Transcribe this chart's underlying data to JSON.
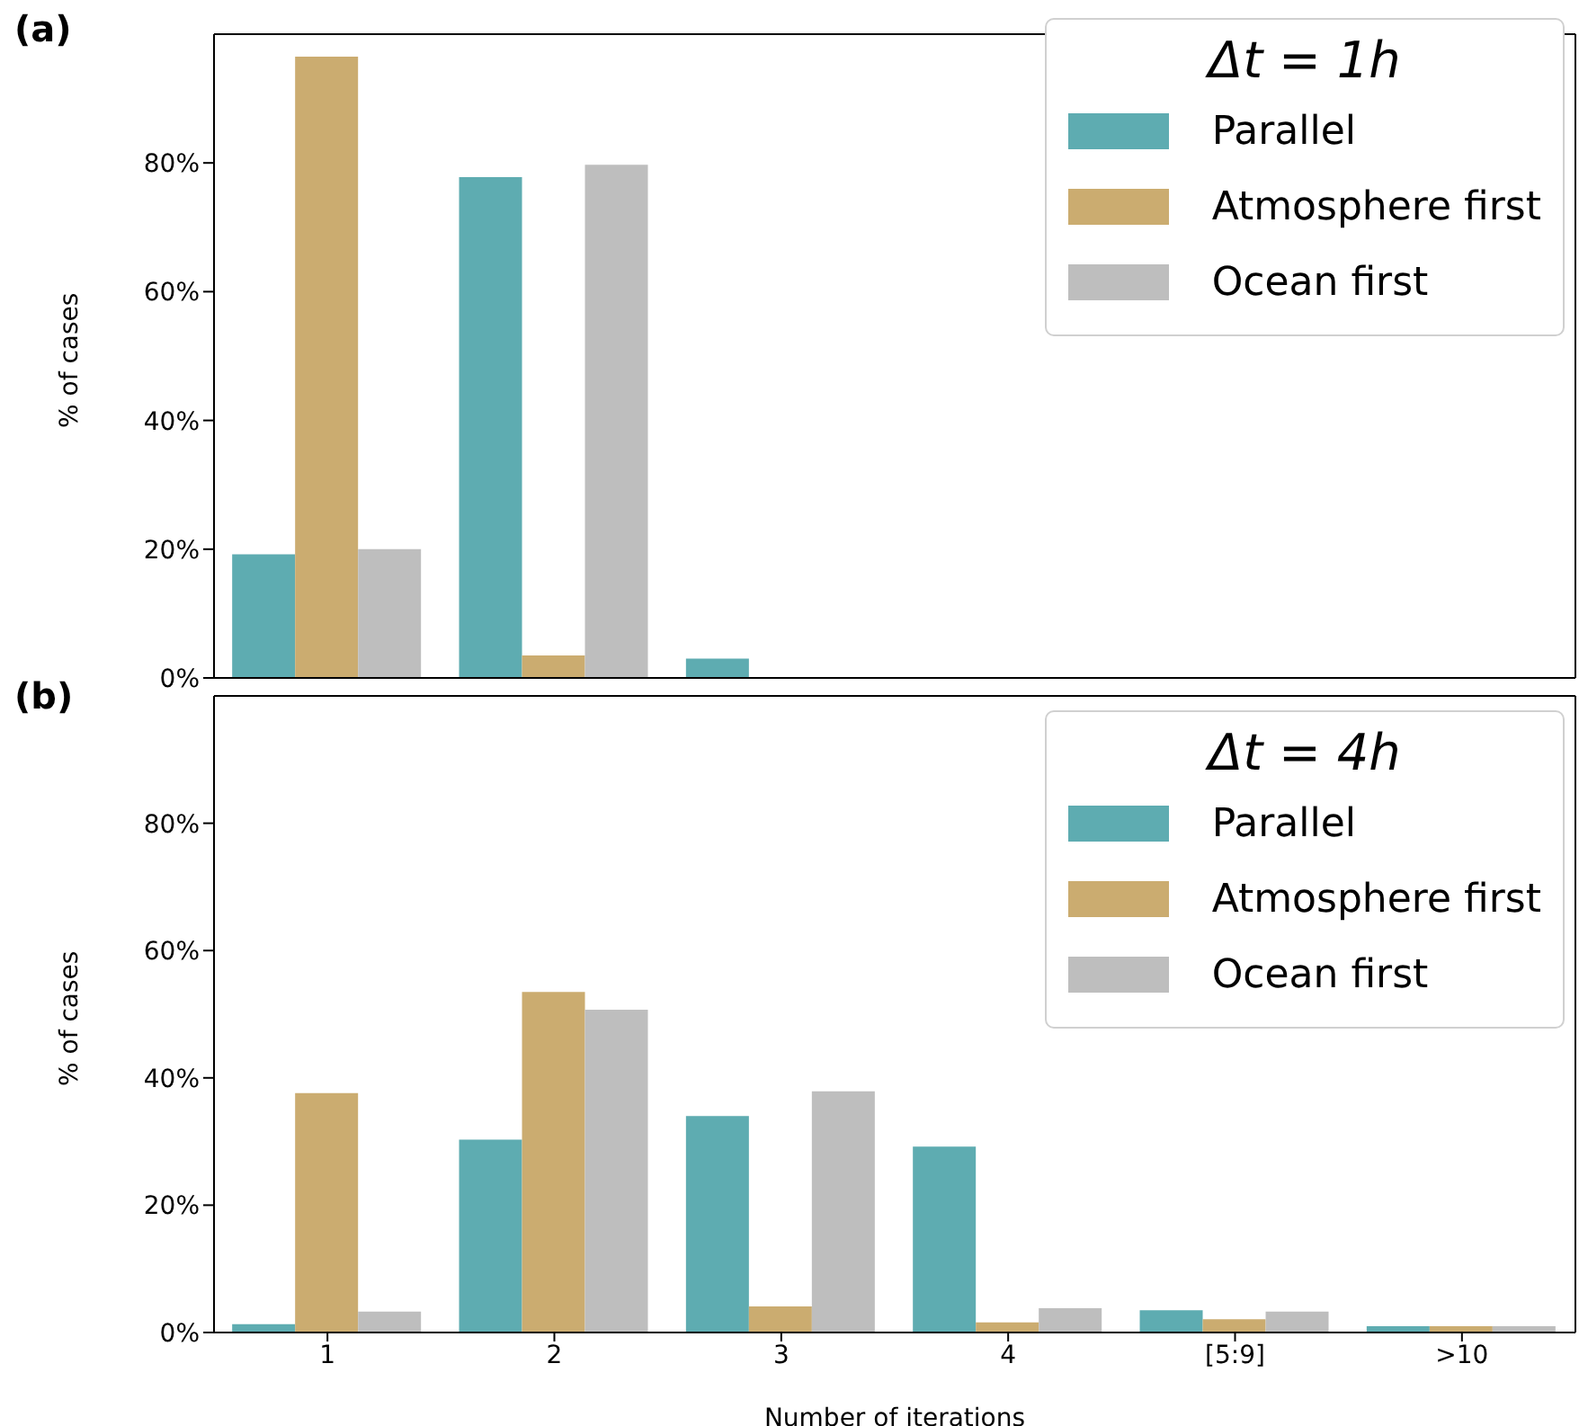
{
  "chart_data": [
    {
      "type": "bar",
      "title": "(a)",
      "ylabel": "% of cases",
      "legend_title": "Δt = 1h",
      "legend": "top right",
      "tick_labels": "y",
      "categories": [
        null,
        null,
        null,
        null,
        null,
        null
      ],
      "ylim": [
        0,
        100
      ],
      "yticks": [
        {
          "value": 0,
          "label": "0%"
        },
        {
          "value": 20,
          "label": "20%"
        },
        {
          "value": 40,
          "label": "40%"
        },
        {
          "value": 60,
          "label": "60%"
        },
        {
          "value": 80,
          "label": "80%"
        }
      ],
      "series": [
        {
          "name": "Parallel",
          "color": "#5eacb1",
          "values": [
            19.2,
            77.8,
            3.0,
            0,
            0,
            0
          ]
        },
        {
          "name": "Atmosphere first",
          "color": "#cbac70",
          "values": [
            96.5,
            3.5,
            0,
            0,
            0,
            0
          ]
        },
        {
          "name": "Ocean first",
          "color": "#bebebe",
          "values": [
            20.0,
            79.7,
            0,
            0,
            0,
            0
          ]
        }
      ]
    },
    {
      "type": "bar",
      "title": "(b)",
      "xlabel": "Number of iterations",
      "ylabel": "% of cases",
      "legend_title": "Δt = 4h",
      "legend": "top right",
      "categories": [
        "1",
        "2",
        "3",
        "4",
        "[5:9]",
        ">10"
      ],
      "ylim": [
        0,
        100
      ],
      "yticks": [
        {
          "value": 0,
          "label": "0%"
        },
        {
          "value": 20,
          "label": "20%"
        },
        {
          "value": 40,
          "label": "40%"
        },
        {
          "value": 60,
          "label": "60%"
        },
        {
          "value": 80,
          "label": "80%"
        }
      ],
      "series": [
        {
          "name": "Parallel",
          "color": "#5eacb1",
          "values": [
            1.3,
            30.3,
            34.0,
            29.2,
            3.5,
            1.0
          ]
        },
        {
          "name": "Atmosphere first",
          "color": "#cbac70",
          "values": [
            37.6,
            53.5,
            4.1,
            1.6,
            2.1,
            1.0
          ]
        },
        {
          "name": "Ocean first",
          "color": "#bebebe",
          "values": [
            3.3,
            50.7,
            37.9,
            3.8,
            3.3,
            1.0
          ]
        }
      ]
    }
  ]
}
